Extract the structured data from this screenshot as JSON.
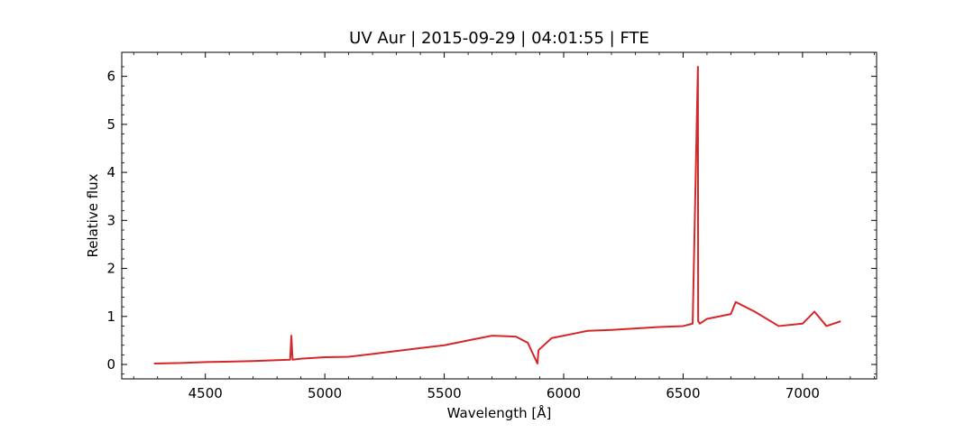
{
  "chart_data": {
    "type": "line",
    "title": "UV Aur | 2015-09-29 | 04:01:55 | FTE",
    "xlabel": "Wavelength [Å]",
    "ylabel": "Relative flux",
    "xlim": [
      4150,
      7310
    ],
    "ylim": [
      -0.3,
      6.5
    ],
    "xticks": [
      4500,
      5000,
      5500,
      6000,
      6500,
      7000
    ],
    "yticks": [
      0,
      1,
      2,
      3,
      4,
      5,
      6
    ],
    "grid": false,
    "series_color": "#d62728",
    "series": [
      {
        "x": [
          4285,
          4400,
          4500,
          4600,
          4700,
          4800,
          4855,
          4860,
          4865,
          4900,
          5000,
          5100,
          5200,
          5300,
          5400,
          5500,
          5600,
          5700,
          5800,
          5850,
          5890,
          5895,
          5950,
          6000,
          6050,
          6100,
          6200,
          6300,
          6400,
          6500,
          6540,
          6562,
          6563,
          6570,
          6600,
          6700,
          6720,
          6800,
          6900,
          7000,
          7050,
          7100,
          7160
        ],
        "y": [
          0.02,
          0.03,
          0.05,
          0.06,
          0.07,
          0.09,
          0.1,
          0.6,
          0.1,
          0.12,
          0.15,
          0.16,
          0.22,
          0.28,
          0.34,
          0.4,
          0.5,
          0.6,
          0.58,
          0.45,
          0.02,
          0.3,
          0.55,
          0.6,
          0.65,
          0.7,
          0.72,
          0.75,
          0.78,
          0.8,
          0.85,
          6.2,
          0.9,
          0.85,
          0.95,
          1.05,
          1.3,
          1.1,
          0.8,
          0.85,
          1.1,
          0.8,
          0.9
        ]
      }
    ]
  }
}
